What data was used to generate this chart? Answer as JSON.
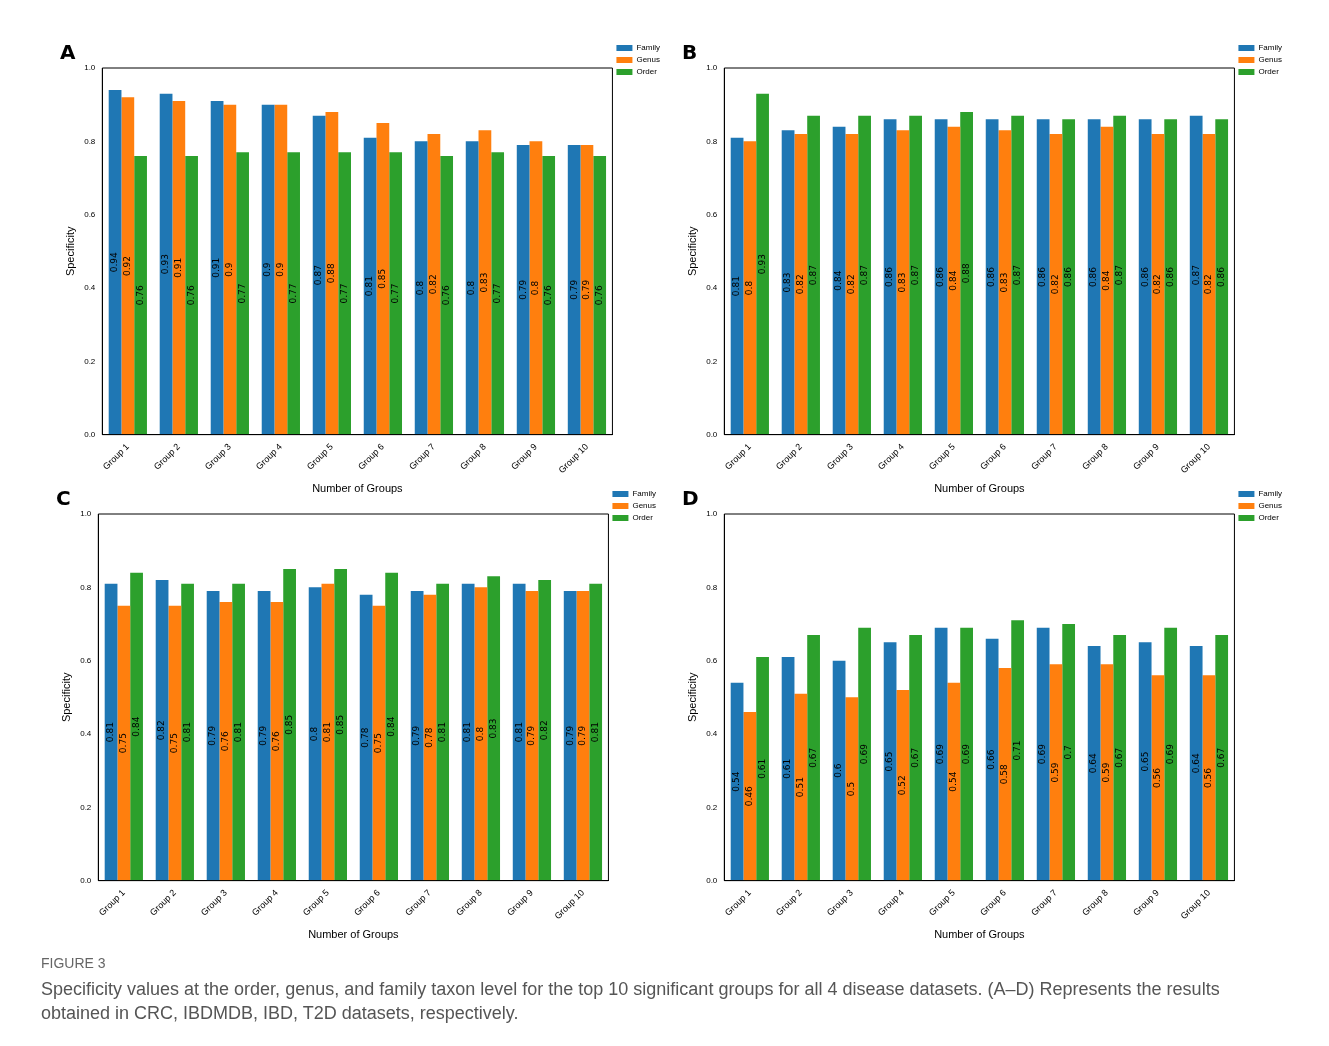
{
  "chart_data": [
    {
      "type": "bar",
      "title": "A",
      "xlabel": "Number of Groups",
      "ylabel": "Specificity",
      "categories": [
        "Group 1",
        "Group 2",
        "Group 3",
        "Group 4",
        "Group 5",
        "Group 6",
        "Group 7",
        "Group 8",
        "Group 9",
        "Group 10"
      ],
      "series": [
        {
          "name": "Family",
          "color": "#1f77b4",
          "values": [
            0.94,
            0.93,
            0.91,
            0.9,
            0.87,
            0.81,
            0.8,
            0.8,
            0.79,
            0.79
          ]
        },
        {
          "name": "Genus",
          "color": "#ff7f0e",
          "values": [
            0.92,
            0.91,
            0.9,
            0.9,
            0.88,
            0.85,
            0.82,
            0.83,
            0.8,
            0.79
          ]
        },
        {
          "name": "Order",
          "color": "#2ca02c",
          "values": [
            0.76,
            0.76,
            0.77,
            0.77,
            0.77,
            0.77,
            0.76,
            0.77,
            0.76,
            0.76
          ]
        }
      ],
      "ylim": [
        0,
        1
      ],
      "yticks": [
        {
          "value": 0,
          "label": "0.0"
        },
        {
          "value": 0.2,
          "label": "0.2"
        },
        {
          "value": 0.4,
          "label": "0.4"
        },
        {
          "value": 0.6,
          "label": "0.6"
        },
        {
          "value": 0.8,
          "label": "0.8"
        },
        {
          "value": 1,
          "label": "1.0"
        }
      ],
      "legend": "top right",
      "data_labels": true,
      "annotations": [
        "FIGURE 3",
        "Specificity values at the order, genus, and family taxon level for the top 10 significant groups for all 4 disease datasets. (A–D) Represents the results obtained in CRC, IBDMDB, IBD, T2D datasets, respectively."
      ]
    },
    {
      "type": "bar",
      "title": "B",
      "xlabel": "Number of Groups",
      "ylabel": "Specificity",
      "categories": [
        "Group 1",
        "Group 2",
        "Group 3",
        "Group 4",
        "Group 5",
        "Group 6",
        "Group 7",
        "Group 8",
        "Group 9",
        "Group 10"
      ],
      "series": [
        {
          "name": "Family",
          "color": "#1f77b4",
          "values": [
            0.81,
            0.83,
            0.84,
            0.86,
            0.86,
            0.86,
            0.86,
            0.86,
            0.86,
            0.87
          ]
        },
        {
          "name": "Genus",
          "color": "#ff7f0e",
          "values": [
            0.8,
            0.82,
            0.82,
            0.83,
            0.84,
            0.83,
            0.82,
            0.84,
            0.82,
            0.82
          ]
        },
        {
          "name": "Order",
          "color": "#2ca02c",
          "values": [
            0.93,
            0.87,
            0.87,
            0.87,
            0.88,
            0.87,
            0.86,
            0.87,
            0.86,
            0.86
          ]
        }
      ],
      "ylim": [
        0,
        1
      ],
      "yticks": [
        {
          "value": 0,
          "label": "0.0"
        },
        {
          "value": 0.2,
          "label": "0.2"
        },
        {
          "value": 0.4,
          "label": "0.4"
        },
        {
          "value": 0.6,
          "label": "0.6"
        },
        {
          "value": 0.8,
          "label": "0.8"
        },
        {
          "value": 1,
          "label": "1.0"
        }
      ],
      "legend": "top right",
      "data_labels": true
    },
    {
      "type": "bar",
      "title": "C",
      "xlabel": "Number of Groups",
      "ylabel": "Specificity",
      "categories": [
        "Group 1",
        "Group 2",
        "Group 3",
        "Group 4",
        "Group 5",
        "Group 6",
        "Group 7",
        "Group 8",
        "Group 9",
        "Group 10"
      ],
      "series": [
        {
          "name": "Family",
          "color": "#1f77b4",
          "values": [
            0.81,
            0.82,
            0.79,
            0.79,
            0.8,
            0.78,
            0.79,
            0.81,
            0.81,
            0.79
          ]
        },
        {
          "name": "Genus",
          "color": "#ff7f0e",
          "values": [
            0.75,
            0.75,
            0.76,
            0.76,
            0.81,
            0.75,
            0.78,
            0.8,
            0.79,
            0.79
          ]
        },
        {
          "name": "Order",
          "color": "#2ca02c",
          "values": [
            0.84,
            0.81,
            0.81,
            0.85,
            0.85,
            0.84,
            0.81,
            0.83,
            0.82,
            0.81
          ]
        }
      ],
      "ylim": [
        0,
        1
      ],
      "yticks": [
        {
          "value": 0,
          "label": "0.0"
        },
        {
          "value": 0.2,
          "label": "0.2"
        },
        {
          "value": 0.4,
          "label": "0.4"
        },
        {
          "value": 0.6,
          "label": "0.6"
        },
        {
          "value": 0.8,
          "label": "0.8"
        },
        {
          "value": 1,
          "label": "1.0"
        }
      ],
      "legend": "top right",
      "data_labels": true
    },
    {
      "type": "bar",
      "title": "D",
      "xlabel": "Number of Groups",
      "ylabel": "Specificity",
      "categories": [
        "Group 1",
        "Group 2",
        "Group 3",
        "Group 4",
        "Group 5",
        "Group 6",
        "Group 7",
        "Group 8",
        "Group 9",
        "Group 10"
      ],
      "series": [
        {
          "name": "Family",
          "color": "#1f77b4",
          "values": [
            0.54,
            0.61,
            0.6,
            0.65,
            0.69,
            0.66,
            0.69,
            0.64,
            0.65,
            0.64
          ]
        },
        {
          "name": "Genus",
          "color": "#ff7f0e",
          "values": [
            0.46,
            0.51,
            0.5,
            0.52,
            0.54,
            0.58,
            0.59,
            0.59,
            0.56,
            0.56
          ]
        },
        {
          "name": "Order",
          "color": "#2ca02c",
          "values": [
            0.61,
            0.67,
            0.69,
            0.67,
            0.69,
            0.71,
            0.7,
            0.67,
            0.69,
            0.67
          ]
        }
      ],
      "ylim": [
        0,
        1
      ],
      "yticks": [
        {
          "value": 0,
          "label": "0.0"
        },
        {
          "value": 0.2,
          "label": "0.2"
        },
        {
          "value": 0.4,
          "label": "0.4"
        },
        {
          "value": 0.6,
          "label": "0.6"
        },
        {
          "value": 0.8,
          "label": "0.8"
        },
        {
          "value": 1,
          "label": "1.0"
        }
      ],
      "legend": "top right",
      "data_labels": true
    }
  ]
}
